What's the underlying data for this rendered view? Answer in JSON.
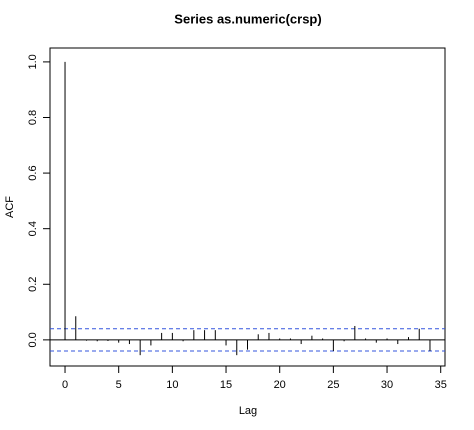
{
  "chart_data": {
    "type": "acf",
    "title": "Series  as.numeric(crsp)",
    "xlabel": "Lag",
    "ylabel": "ACF",
    "x": [
      0,
      1,
      2,
      3,
      4,
      5,
      6,
      7,
      8,
      9,
      10,
      11,
      12,
      13,
      14,
      15,
      16,
      17,
      18,
      19,
      20,
      21,
      22,
      23,
      24,
      25,
      26,
      27,
      28,
      29,
      30,
      31,
      32,
      33,
      34
    ],
    "values": [
      1.0,
      0.085,
      -0.003,
      -0.005,
      -0.004,
      -0.01,
      -0.015,
      -0.055,
      -0.02,
      0.025,
      0.025,
      -0.005,
      0.035,
      0.035,
      0.035,
      -0.02,
      -0.055,
      -0.035,
      0.02,
      0.025,
      0.005,
      0.005,
      -0.015,
      0.015,
      0.005,
      -0.04,
      -0.005,
      0.05,
      0.005,
      -0.01,
      0.005,
      -0.015,
      0.01,
      0.04,
      -0.04
    ],
    "ci": 0.04,
    "color": "#000000",
    "ci_color": "#3355dd",
    "xlim": [
      -1.4,
      35.4
    ],
    "ylim": [
      -0.094,
      1.05
    ],
    "xticks": [
      0,
      5,
      10,
      15,
      20,
      25,
      30,
      35
    ],
    "yticks": [
      {
        "value": 0,
        "label": "0.0"
      },
      0.2,
      0.4,
      0.6,
      0.8,
      {
        "value": 1,
        "label": "1.0"
      }
    ]
  }
}
